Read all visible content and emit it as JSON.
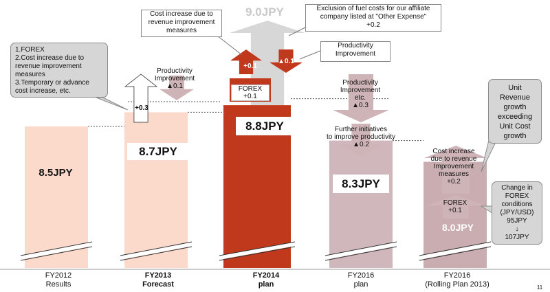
{
  "chart_data": {
    "type": "bar",
    "unit": "JPY",
    "categories": [
      {
        "line1": "FY2012",
        "line2": "Results",
        "bold": false
      },
      {
        "line1": "FY2013",
        "line2": "Forecast",
        "bold": true
      },
      {
        "line1": "FY2014",
        "line2": "plan",
        "bold": true
      },
      {
        "line1": "FY2016",
        "line2": "plan",
        "bold": false
      },
      {
        "line1": "FY2016",
        "line2": "(Rolling Plan 2013)",
        "bold": false
      }
    ],
    "values": [
      8.5,
      8.7,
      8.8,
      8.3,
      8.0
    ],
    "value_labels": [
      "8.5JPY",
      "8.7JPY",
      "8.8JPY",
      "8.3JPY",
      "8.0JPY"
    ],
    "colors": [
      "#fbd9cb",
      "#fbd9cb",
      "#c0391c",
      "#d0b7bb",
      "#c9adb1"
    ],
    "ghost_value_label": "9.0JPY",
    "axis_break": true
  },
  "deltas": {
    "fy13_up": "+0.3",
    "fy13_prod": "Productivity\nImprovement\n▲0.1",
    "fy14_up": "+0.1",
    "fy14_down": "▲0.1",
    "fy14_forex": "FOREX\n+0.1",
    "fy16_prod": "Productivity\nImprovement\netc.\n▲0.3",
    "fy16_further": "Further initiatives\nto improve productivity\n▲0.2",
    "fy16r_cost": "Cost increase\ndue to revenue\nImprovement\nmeasures\n+0.2",
    "fy16r_forex": "FOREX\n+0.1"
  },
  "callouts": {
    "cost_increase": "Cost increase due to\nrevenue improvement\nmeasures",
    "fuel": "Exclusion of fuel costs for our affiliate\ncompany  listed at \"Other Expense\"\n+0.2",
    "productivity": "Productivity\nImprovement",
    "left_list": "1.FOREX\n2.Cost increase due to\nrevenue improvement\nmeasures\n3.Temporary or advance\ncost increase, etc.",
    "unit_revenue": "Unit\nRevenue\ngrowth\nexceeding\nUnit Cost\ngrowth",
    "forex_change": "Change in\nFOREX\nconditions\n(JPY/USD)\n95JPY\n↓\n107JPY"
  },
  "page_number": "11"
}
